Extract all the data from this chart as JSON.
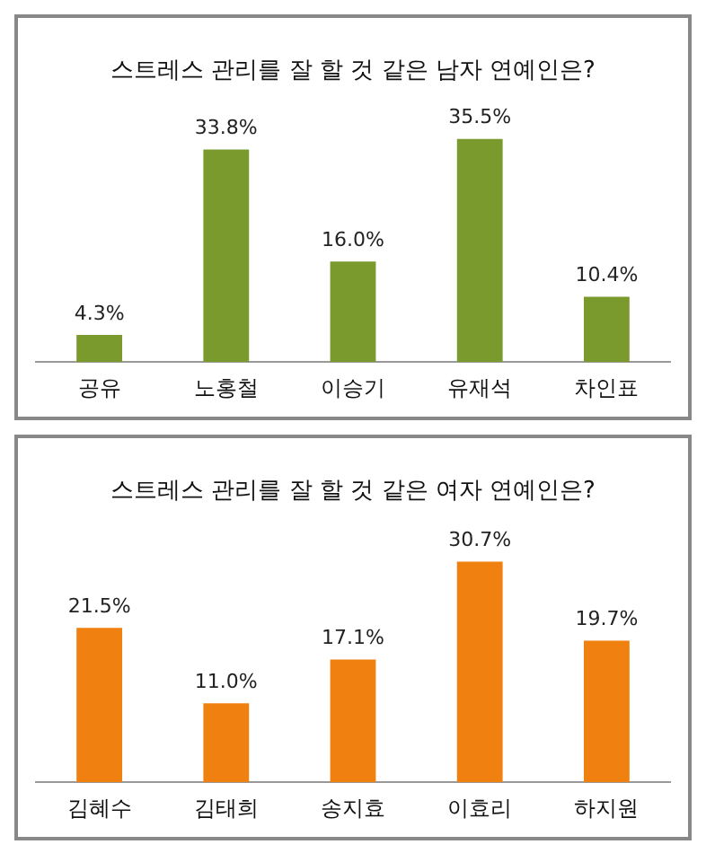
{
  "chart_data": [
    {
      "type": "bar",
      "title": "스트레스 관리를 잘 할 것 같은 남자 연예인은?",
      "categories": [
        "공유",
        "노홍철",
        "이승기",
        "유재석",
        "차인표"
      ],
      "values": [
        4.3,
        33.8,
        16.0,
        35.5,
        10.4
      ],
      "value_labels": [
        "4.3%",
        "33.8%",
        "16.0%",
        "35.5%",
        "10.4%"
      ],
      "color": "#7a9a2e",
      "tick_labels": "x",
      "grid": false,
      "legend": false
    },
    {
      "type": "bar",
      "title": "스트레스 관리를 잘 할 것 같은 여자 연예인은?",
      "categories": [
        "김혜수",
        "김태희",
        "송지효",
        "이효리",
        "하지원"
      ],
      "values": [
        21.5,
        11.0,
        17.1,
        30.7,
        19.7
      ],
      "value_labels": [
        "21.5%",
        "11.0%",
        "17.1%",
        "30.7%",
        "19.7%"
      ],
      "color": "#f08010",
      "tick_labels": "x",
      "grid": false,
      "legend": false
    }
  ]
}
